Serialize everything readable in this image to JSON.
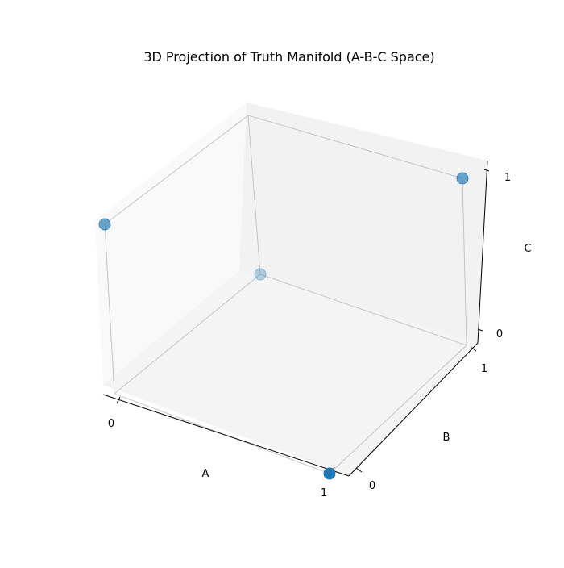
{
  "chart_data": {
    "type": "scatter",
    "projection": "3d",
    "title": "3D Projection of Truth Manifold (A-B-C Space)",
    "xlabel": "A",
    "ylabel": "B",
    "zlabel": "C",
    "xlim": [
      0,
      1
    ],
    "ylim": [
      0,
      1
    ],
    "zlim": [
      0,
      1
    ],
    "x_ticks": [
      "0",
      "1"
    ],
    "y_ticks": [
      "0",
      "1"
    ],
    "z_ticks": [
      "0",
      "1"
    ],
    "grid": true,
    "marker_color": "#1f77b4",
    "points": [
      {
        "x": 1,
        "y": 0,
        "z": 0
      },
      {
        "x": 0,
        "y": 1,
        "z": 0
      },
      {
        "x": 0,
        "y": 0,
        "z": 1
      },
      {
        "x": 1,
        "y": 1,
        "z": 1
      }
    ]
  }
}
